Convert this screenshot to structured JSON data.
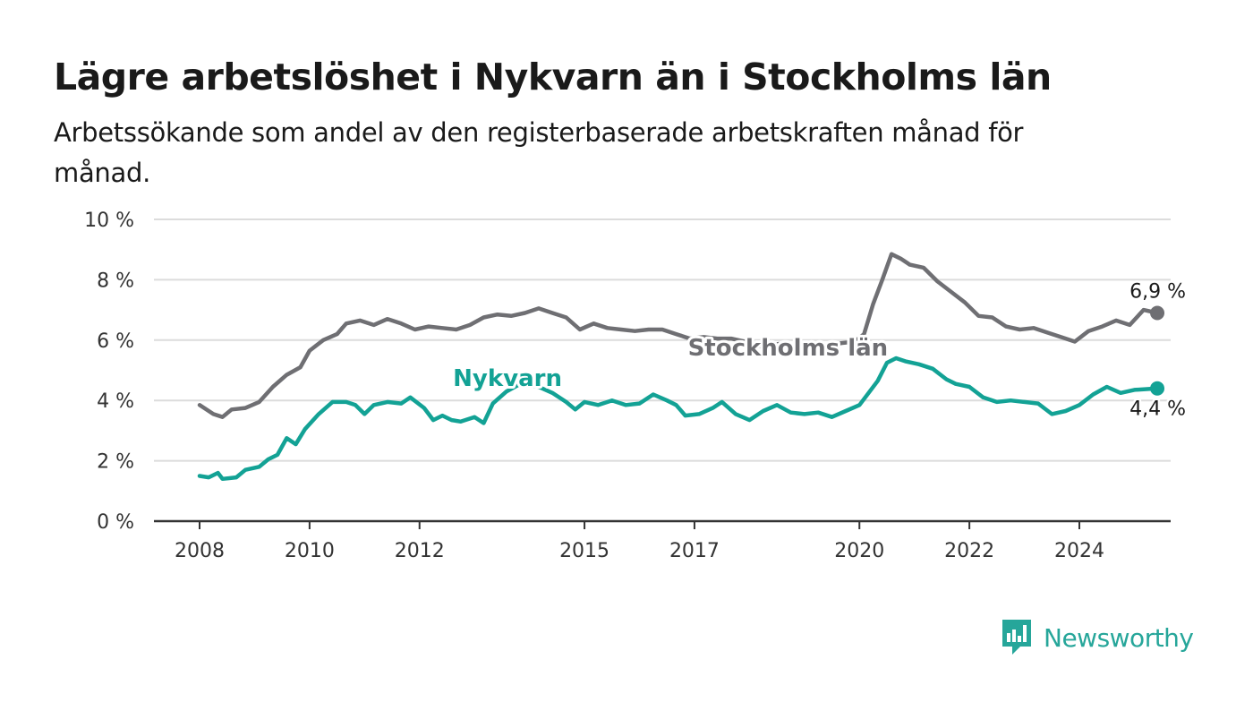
{
  "title": "Lägre arbetslöshet i Nykvarn än i Stockholms län",
  "subtitle": "Arbetssökande som andel av den registerbaserade arbetskraften månad för månad.",
  "brand": {
    "name": "Newsworthy",
    "icon": "newsworthy-logo-icon",
    "color": "#26a69a"
  },
  "chart_data": {
    "type": "line",
    "x_ticks": [
      "2008",
      "2010",
      "2012",
      "2015",
      "2017",
      "2020",
      "2022",
      "2024"
    ],
    "y_ticks": [
      "0 %",
      "2 %",
      "4 %",
      "6 %",
      "8 %",
      "10 %"
    ],
    "ylim": [
      0,
      10
    ],
    "grid": true,
    "legend": "inline-labels",
    "series": [
      {
        "name": "Stockholms län",
        "color": "#6f6f73",
        "end_label": "6,9 %",
        "points": [
          [
            "2008-01",
            3.85
          ],
          [
            "2008-04",
            3.55
          ],
          [
            "2008-06",
            3.45
          ],
          [
            "2008-08",
            3.7
          ],
          [
            "2008-11",
            3.75
          ],
          [
            "2009-02",
            3.95
          ],
          [
            "2009-05",
            4.45
          ],
          [
            "2009-08",
            4.85
          ],
          [
            "2009-11",
            5.1
          ],
          [
            "2010-01",
            5.65
          ],
          [
            "2010-04",
            6.0
          ],
          [
            "2010-07",
            6.2
          ],
          [
            "2010-09",
            6.55
          ],
          [
            "2010-12",
            6.65
          ],
          [
            "2011-03",
            6.5
          ],
          [
            "2011-06",
            6.7
          ],
          [
            "2011-09",
            6.55
          ],
          [
            "2011-12",
            6.35
          ],
          [
            "2012-03",
            6.45
          ],
          [
            "2012-06",
            6.4
          ],
          [
            "2012-09",
            6.35
          ],
          [
            "2012-12",
            6.5
          ],
          [
            "2013-03",
            6.75
          ],
          [
            "2013-06",
            6.85
          ],
          [
            "2013-09",
            6.8
          ],
          [
            "2013-12",
            6.9
          ],
          [
            "2014-03",
            7.05
          ],
          [
            "2014-06",
            6.9
          ],
          [
            "2014-09",
            6.75
          ],
          [
            "2014-12",
            6.35
          ],
          [
            "2015-03",
            6.55
          ],
          [
            "2015-06",
            6.4
          ],
          [
            "2015-09",
            6.35
          ],
          [
            "2015-12",
            6.3
          ],
          [
            "2016-03",
            6.35
          ],
          [
            "2016-06",
            6.35
          ],
          [
            "2016-09",
            6.2
          ],
          [
            "2016-12",
            6.05
          ],
          [
            "2017-03",
            6.1
          ],
          [
            "2017-06",
            6.05
          ],
          [
            "2017-09",
            6.05
          ],
          [
            "2017-12",
            5.95
          ],
          [
            "2018-03",
            5.8
          ],
          [
            "2018-06",
            5.85
          ],
          [
            "2018-09",
            5.9
          ],
          [
            "2018-12",
            5.7
          ],
          [
            "2019-03",
            5.85
          ],
          [
            "2019-06",
            5.8
          ],
          [
            "2019-09",
            5.9
          ],
          [
            "2019-12",
            5.95
          ],
          [
            "2020-02",
            6.2
          ],
          [
            "2020-04",
            7.2
          ],
          [
            "2020-06",
            8.0
          ],
          [
            "2020-08",
            8.85
          ],
          [
            "2020-10",
            8.7
          ],
          [
            "2020-12",
            8.5
          ],
          [
            "2021-03",
            8.4
          ],
          [
            "2021-06",
            7.95
          ],
          [
            "2021-09",
            7.6
          ],
          [
            "2021-12",
            7.25
          ],
          [
            "2022-03",
            6.8
          ],
          [
            "2022-06",
            6.75
          ],
          [
            "2022-09",
            6.45
          ],
          [
            "2022-12",
            6.35
          ],
          [
            "2023-03",
            6.4
          ],
          [
            "2023-06",
            6.25
          ],
          [
            "2023-09",
            6.1
          ],
          [
            "2023-12",
            5.95
          ],
          [
            "2024-03",
            6.3
          ],
          [
            "2024-06",
            6.45
          ],
          [
            "2024-09",
            6.65
          ],
          [
            "2024-12",
            6.5
          ],
          [
            "2025-03",
            7.0
          ],
          [
            "2025-06",
            6.9
          ]
        ]
      },
      {
        "name": "Nykvarn",
        "color": "#13a295",
        "end_label": "4,4 %",
        "points": [
          [
            "2008-01",
            1.5
          ],
          [
            "2008-03",
            1.45
          ],
          [
            "2008-05",
            1.6
          ],
          [
            "2008-06",
            1.4
          ],
          [
            "2008-09",
            1.45
          ],
          [
            "2008-11",
            1.7
          ],
          [
            "2009-02",
            1.8
          ],
          [
            "2009-04",
            2.05
          ],
          [
            "2009-06",
            2.2
          ],
          [
            "2009-08",
            2.75
          ],
          [
            "2009-10",
            2.55
          ],
          [
            "2009-12",
            3.05
          ],
          [
            "2010-03",
            3.55
          ],
          [
            "2010-06",
            3.95
          ],
          [
            "2010-09",
            3.95
          ],
          [
            "2010-11",
            3.85
          ],
          [
            "2011-01",
            3.55
          ],
          [
            "2011-03",
            3.85
          ],
          [
            "2011-06",
            3.95
          ],
          [
            "2011-09",
            3.9
          ],
          [
            "2011-11",
            4.1
          ],
          [
            "2012-02",
            3.75
          ],
          [
            "2012-04",
            3.35
          ],
          [
            "2012-06",
            3.5
          ],
          [
            "2012-08",
            3.35
          ],
          [
            "2012-10",
            3.3
          ],
          [
            "2013-01",
            3.45
          ],
          [
            "2013-03",
            3.25
          ],
          [
            "2013-05",
            3.9
          ],
          [
            "2013-08",
            4.3
          ],
          [
            "2013-11",
            4.55
          ],
          [
            "2014-03",
            4.45
          ],
          [
            "2014-06",
            4.25
          ],
          [
            "2014-09",
            3.95
          ],
          [
            "2014-11",
            3.7
          ],
          [
            "2015-01",
            3.95
          ],
          [
            "2015-04",
            3.85
          ],
          [
            "2015-07",
            4.0
          ],
          [
            "2015-10",
            3.85
          ],
          [
            "2016-01",
            3.9
          ],
          [
            "2016-04",
            4.2
          ],
          [
            "2016-07",
            4.0
          ],
          [
            "2016-09",
            3.85
          ],
          [
            "2016-11",
            3.5
          ],
          [
            "2017-02",
            3.55
          ],
          [
            "2017-05",
            3.75
          ],
          [
            "2017-07",
            3.95
          ],
          [
            "2017-10",
            3.55
          ],
          [
            "2018-01",
            3.35
          ],
          [
            "2018-04",
            3.65
          ],
          [
            "2018-07",
            3.85
          ],
          [
            "2018-10",
            3.6
          ],
          [
            "2019-01",
            3.55
          ],
          [
            "2019-04",
            3.6
          ],
          [
            "2019-07",
            3.45
          ],
          [
            "2019-10",
            3.65
          ],
          [
            "2020-01",
            3.85
          ],
          [
            "2020-03",
            4.25
          ],
          [
            "2020-05",
            4.65
          ],
          [
            "2020-07",
            5.25
          ],
          [
            "2020-09",
            5.4
          ],
          [
            "2020-11",
            5.3
          ],
          [
            "2021-02",
            5.2
          ],
          [
            "2021-05",
            5.05
          ],
          [
            "2021-08",
            4.7
          ],
          [
            "2021-10",
            4.55
          ],
          [
            "2022-01",
            4.45
          ],
          [
            "2022-04",
            4.1
          ],
          [
            "2022-07",
            3.95
          ],
          [
            "2022-10",
            4.0
          ],
          [
            "2023-01",
            3.95
          ],
          [
            "2023-04",
            3.9
          ],
          [
            "2023-07",
            3.55
          ],
          [
            "2023-10",
            3.65
          ],
          [
            "2024-01",
            3.85
          ],
          [
            "2024-04",
            4.2
          ],
          [
            "2024-07",
            4.45
          ],
          [
            "2024-10",
            4.25
          ],
          [
            "2025-01",
            4.35
          ],
          [
            "2025-06",
            4.4
          ]
        ]
      }
    ]
  }
}
